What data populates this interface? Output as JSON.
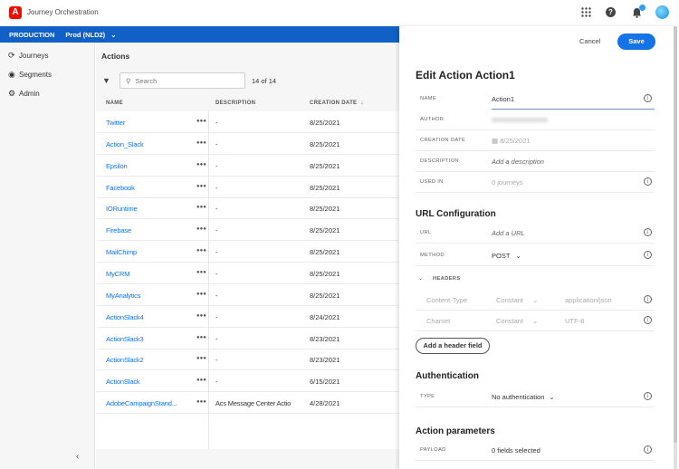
{
  "app": {
    "title": "Journey Orchestration",
    "logo": "A"
  },
  "topbar": {
    "icons": [
      "apps-grid-icon",
      "help-icon",
      "bell-icon",
      "avatar"
    ]
  },
  "env": {
    "label": "PRODUCTION",
    "sandbox": "Prod (NLD2)"
  },
  "sidebar": {
    "items": [
      {
        "label": "Journeys",
        "icon": "journeys-icon"
      },
      {
        "label": "Segments",
        "icon": "segments-icon"
      },
      {
        "label": "Admin",
        "icon": "gear-icon"
      }
    ]
  },
  "actions": {
    "title": "Actions",
    "search_placeholder": "Search",
    "count": "14 of 14",
    "columns": [
      "NAME",
      "DESCRIPTION",
      "CREATION DATE"
    ],
    "rows": [
      {
        "name": "Twitter",
        "description": "-",
        "date": "8/25/2021"
      },
      {
        "name": "Action_Slack",
        "description": "-",
        "date": "8/25/2021"
      },
      {
        "name": "Epsilon",
        "description": "-",
        "date": "8/25/2021"
      },
      {
        "name": "Facebook",
        "description": "-",
        "date": "8/25/2021"
      },
      {
        "name": "IORuntime",
        "description": "-",
        "date": "8/25/2021"
      },
      {
        "name": "Firebase",
        "description": "-",
        "date": "8/25/2021"
      },
      {
        "name": "MailChimp",
        "description": "-",
        "date": "8/25/2021"
      },
      {
        "name": "MyCRM",
        "description": "-",
        "date": "8/25/2021"
      },
      {
        "name": "MyAnalytics",
        "description": "-",
        "date": "8/25/2021"
      },
      {
        "name": "ActionSlack4",
        "description": "-",
        "date": "8/24/2021"
      },
      {
        "name": "ActionSlack3",
        "description": "-",
        "date": "8/23/2021"
      },
      {
        "name": "ActionSlack2",
        "description": "-",
        "date": "8/23/2021"
      },
      {
        "name": "ActionSlack",
        "description": "-",
        "date": "6/15/2021"
      },
      {
        "name": "AdobeCampaignStand...",
        "description": "Acs Message Center Actio",
        "date": "4/28/2021"
      }
    ]
  },
  "panel": {
    "cancel": "Cancel",
    "save": "Save",
    "title": "Edit Action Action1",
    "fields": {
      "name_label": "NAME",
      "name_value": "Action1",
      "author_label": "AUTHOR",
      "date_label": "CREATION DATE",
      "date_value": "8/25/2021",
      "desc_label": "DESCRIPTION",
      "desc_placeholder": "Add a description",
      "used_label": "USED IN",
      "used_value": "0 journeys"
    },
    "url_section": "URL Configuration",
    "url_label": "URL",
    "url_placeholder": "Add a URL",
    "method_label": "METHOD",
    "method_value": "POST",
    "headers_label": "HEADERS",
    "headers": [
      {
        "name": "Content-Type",
        "type": "Constant",
        "value": "application/json"
      },
      {
        "name": "Charset",
        "type": "Constant",
        "value": "UTF-8"
      }
    ],
    "add_header": "Add a header field",
    "auth_section": "Authentication",
    "auth_type_label": "TYPE",
    "auth_type_value": "No authentication",
    "params_section": "Action parameters",
    "payload_label": "PAYLOAD",
    "payload_value": "0 fields selected"
  },
  "colors": {
    "accent": "#1473e6",
    "env_bar": "#1160c8",
    "logo": "#eb1000"
  }
}
